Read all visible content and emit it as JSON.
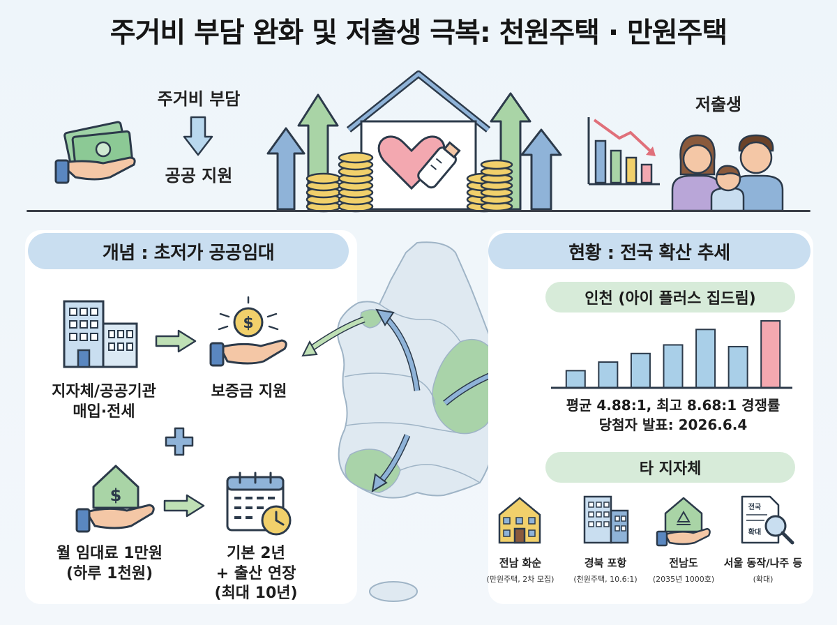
{
  "title": "주거비 부담 완화 및 저출생 극복: 천원주택 · 만원주택",
  "header": {
    "left_top": "주거비 부담",
    "left_bottom": "공공 지원",
    "right_label": "저출생"
  },
  "concept": {
    "heading": "개념 : 초저가 공공임대",
    "step1": "지자체/공공기관\n매입·전세",
    "step2": "보증금 지원",
    "step3": "월 임대료 1만원\n(하루 1천원)",
    "step4": "기본 2년\n+ 출산 연장\n(최대 10년)"
  },
  "status": {
    "heading": "현황 : 전국 확산 추세",
    "incheon_label": "인천 (아이 플러스 집드림)",
    "stat_line1": "평균 4.88:1, 최고 8.68:1 경쟁률",
    "stat_line2": "당첨자 발표: 2026.6.4",
    "others_label": "타 지자체",
    "cities": [
      {
        "name": "전남 화순",
        "note": "(만원주택, 2차 모집)"
      },
      {
        "name": "경북 포항",
        "note": "(천원주택, 10.6:1)"
      },
      {
        "name": "전남도",
        "note": "(2035년 1000호)"
      },
      {
        "name": "서울 동작/나주 등",
        "note": "(확대)"
      }
    ],
    "doc_icon_text": [
      "전국",
      "확대"
    ]
  },
  "chart_data": {
    "type": "bar",
    "values": [
      2.0,
      3.0,
      4.0,
      5.0,
      6.8,
      4.8,
      7.8
    ],
    "highlight_index": 6,
    "colors": {
      "bar": "#a9cfe8",
      "highlight": "#f3a8b0",
      "stroke": "#2c3a4a"
    }
  },
  "colors": {
    "panel_pill": "#c9def0",
    "sub_pill": "#d7ebd9",
    "map_land": "#dfe9f1",
    "map_green": "#a9d3a9",
    "arrow_green": "#bfe0b5",
    "arrow_blue": "#8fb3d8"
  },
  "icons": [
    "money-hand-icon",
    "down-arrow-icon",
    "house-heart-icon",
    "coin-stack-icon",
    "decline-chart-icon",
    "family-icon",
    "building-icon",
    "coin-hand-icon",
    "house-hand-icon",
    "calendar-clock-icon",
    "korea-map",
    "plus-icon",
    "document-magnifier-icon",
    "recycle-house-icon"
  ]
}
